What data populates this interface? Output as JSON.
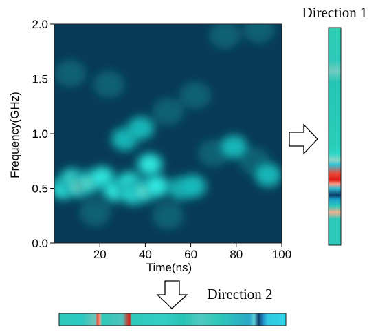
{
  "chart_data": {
    "type": "heatmap",
    "title": "",
    "xlabel": "Time(ns)",
    "ylabel": "Frequency(GHz)",
    "xlim": [
      0,
      100
    ],
    "ylim": [
      0.0,
      2.0
    ],
    "x_ticks": [
      "20",
      "40",
      "60",
      "80",
      "100"
    ],
    "x_tick_values": [
      20,
      40,
      60,
      80,
      100
    ],
    "y_ticks": [
      "0.0",
      "0.5",
      "1.0",
      "1.5",
      "2.0"
    ],
    "y_tick_values": [
      0.0,
      0.5,
      1.0,
      1.5,
      2.0
    ],
    "colorscale": [
      "#073a55",
      "#0f7f8a",
      "#19c6c6",
      "#36f0e8",
      "#a8f0c8",
      "#f08a6a",
      "#e01a14"
    ],
    "hotspots": [
      {
        "t": 4,
        "f": 0.5,
        "intensity": 0.55
      },
      {
        "t": 8,
        "f": 0.58,
        "intensity": 0.6
      },
      {
        "t": 11,
        "f": 0.52,
        "intensity": 1.0
      },
      {
        "t": 16,
        "f": 0.56,
        "intensity": 0.62
      },
      {
        "t": 21,
        "f": 0.6,
        "intensity": 0.5
      },
      {
        "t": 27,
        "f": 0.48,
        "intensity": 0.45
      },
      {
        "t": 33,
        "f": 0.55,
        "intensity": 0.55
      },
      {
        "t": 35,
        "f": 0.45,
        "intensity": 0.5
      },
      {
        "t": 40,
        "f": 0.48,
        "intensity": 0.65
      },
      {
        "t": 42,
        "f": 0.72,
        "intensity": 0.5
      },
      {
        "t": 45,
        "f": 0.52,
        "intensity": 0.5
      },
      {
        "t": 31,
        "f": 0.95,
        "intensity": 0.35
      },
      {
        "t": 38,
        "f": 1.05,
        "intensity": 0.3
      },
      {
        "t": 56,
        "f": 0.5,
        "intensity": 0.4
      },
      {
        "t": 61,
        "f": 0.52,
        "intensity": 0.38
      },
      {
        "t": 70,
        "f": 0.82,
        "intensity": 0.25
      },
      {
        "t": 79,
        "f": 0.88,
        "intensity": 0.3
      },
      {
        "t": 88,
        "f": 0.75,
        "intensity": 0.28
      },
      {
        "t": 94,
        "f": 0.62,
        "intensity": 0.3
      },
      {
        "t": 7,
        "f": 1.55,
        "intensity": 0.22
      },
      {
        "t": 24,
        "f": 1.45,
        "intensity": 0.18
      },
      {
        "t": 50,
        "f": 1.2,
        "intensity": 0.2
      },
      {
        "t": 62,
        "f": 1.35,
        "intensity": 0.18
      },
      {
        "t": 90,
        "f": 1.95,
        "intensity": 0.2
      },
      {
        "t": 75,
        "f": 1.9,
        "intensity": 0.15
      },
      {
        "t": 18,
        "f": 0.28,
        "intensity": 0.25
      },
      {
        "t": 50,
        "f": 0.25,
        "intensity": 0.2
      }
    ]
  },
  "direction1": {
    "label": "Direction 1",
    "stripes": [
      {
        "pos": 0.0,
        "color": "#2ecfb3"
      },
      {
        "pos": 0.15,
        "color": "#2ec8b8"
      },
      {
        "pos": 0.2,
        "color": "#72c9c0"
      },
      {
        "pos": 0.25,
        "color": "#26c4b4"
      },
      {
        "pos": 0.55,
        "color": "#2acdb8"
      },
      {
        "pos": 0.58,
        "color": "#2fd6c7"
      },
      {
        "pos": 0.61,
        "color": "#8fd4c7"
      },
      {
        "pos": 0.63,
        "color": "#2fc2d6"
      },
      {
        "pos": 0.67,
        "color": "#e84a3c"
      },
      {
        "pos": 0.7,
        "color": "#e01a14"
      },
      {
        "pos": 0.72,
        "color": "#f2a08e"
      },
      {
        "pos": 0.74,
        "color": "#2fb6cf"
      },
      {
        "pos": 0.77,
        "color": "#0c3d6a"
      },
      {
        "pos": 0.79,
        "color": "#1aa0c8"
      },
      {
        "pos": 0.82,
        "color": "#2ec8b8"
      },
      {
        "pos": 0.85,
        "color": "#f0b090"
      },
      {
        "pos": 0.88,
        "color": "#2ec8b8"
      },
      {
        "pos": 1.0,
        "color": "#2ec8b8"
      }
    ]
  },
  "direction2": {
    "label": "Direction 2",
    "stripes": [
      {
        "pos": 0.0,
        "color": "#2ec8b8"
      },
      {
        "pos": 0.1,
        "color": "#29c9c0"
      },
      {
        "pos": 0.16,
        "color": "#6ec4b8"
      },
      {
        "pos": 0.17,
        "color": "#e8543e"
      },
      {
        "pos": 0.18,
        "color": "#f0a08a"
      },
      {
        "pos": 0.19,
        "color": "#2ec8b8"
      },
      {
        "pos": 0.28,
        "color": "#4fc3bc"
      },
      {
        "pos": 0.31,
        "color": "#e01a14"
      },
      {
        "pos": 0.32,
        "color": "#2ec8b8"
      },
      {
        "pos": 0.45,
        "color": "#33cfc6"
      },
      {
        "pos": 0.55,
        "color": "#26c4b4"
      },
      {
        "pos": 0.62,
        "color": "#4fc9c0"
      },
      {
        "pos": 0.7,
        "color": "#2ec8b8"
      },
      {
        "pos": 0.84,
        "color": "#2aa8c8"
      },
      {
        "pos": 0.86,
        "color": "#5fd0d8"
      },
      {
        "pos": 0.88,
        "color": "#0c3d6a"
      },
      {
        "pos": 0.9,
        "color": "#1f90c8"
      },
      {
        "pos": 0.92,
        "color": "#2ec8e0"
      },
      {
        "pos": 1.0,
        "color": "#2ed6e6"
      }
    ]
  }
}
